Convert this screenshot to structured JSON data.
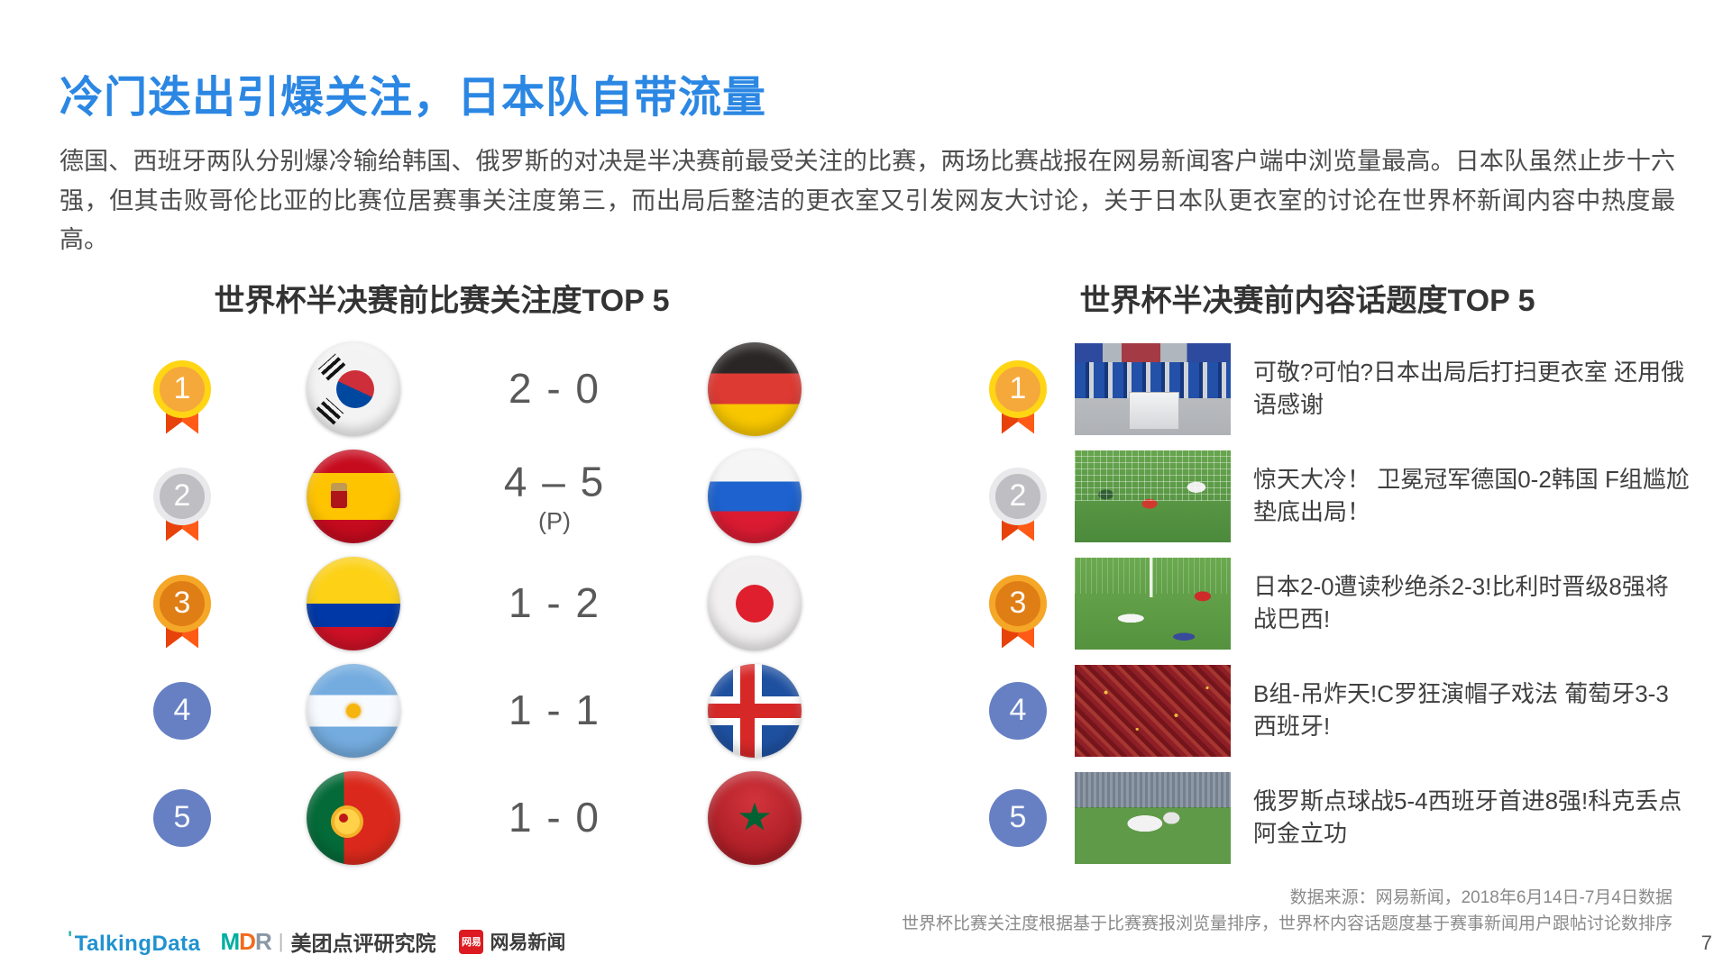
{
  "slide": {
    "title": "冷门迭出引爆关注，日本队自带流量",
    "paragraph": "德国、西班牙两队分别爆冷输给韩国、俄罗斯的对决是半决赛前最受关注的比赛，两场比赛战报在网易新闻客户端中浏览量最高。日本队虽然止步十六强，但其击败哥伦比亚的比赛位居赛事关注度第三，而出局后整洁的更衣室又引发网友大讨论，关于日本队更衣室的讨论在世界杯新闻内容中热度最高。",
    "page_number": "7"
  },
  "left_panel": {
    "header": "世界杯半决赛前比赛关注度TOP 5",
    "rows": [
      {
        "rank": "1",
        "home_flag": "south-korea",
        "score": "2 - 0",
        "score_note": "",
        "away_flag": "germany"
      },
      {
        "rank": "2",
        "home_flag": "spain",
        "score": "4 – 5",
        "score_note": "(P)",
        "away_flag": "russia"
      },
      {
        "rank": "3",
        "home_flag": "colombia",
        "score": "1 - 2",
        "score_note": "",
        "away_flag": "japan"
      },
      {
        "rank": "4",
        "home_flag": "argentina",
        "score": "1 - 1",
        "score_note": "",
        "away_flag": "iceland"
      },
      {
        "rank": "5",
        "home_flag": "portugal",
        "score": "1 - 0",
        "score_note": "",
        "away_flag": "morocco"
      }
    ]
  },
  "right_panel": {
    "header": "世界杯半决赛前内容话题度TOP 5",
    "rows": [
      {
        "rank": "1",
        "thumbnail": "japan-locker-room",
        "headline": "可敬?可怕?日本出局后打扫更衣室 还用俄语感谢"
      },
      {
        "rank": "2",
        "thumbnail": "germany-korea-goal",
        "headline": "惊天大冷！ 卫冕冠军德国0-2韩国 F组尴尬垫底出局！"
      },
      {
        "rank": "3",
        "thumbnail": "japan-belgium-match",
        "headline": "日本2-0遭读秒绝杀2-3!比利时晋级8强将战巴西!"
      },
      {
        "rank": "4",
        "thumbnail": "portugal-spain-crowd",
        "headline": "B组-吊炸天!C罗狂演帽子戏法 葡萄牙3-3西班牙!"
      },
      {
        "rank": "5",
        "thumbnail": "russia-celebration",
        "headline": "俄罗斯点球战5-4西班牙首进8强!科克丢点阿金立功"
      }
    ]
  },
  "footer": {
    "source_line1": "数据来源：网易新闻，2018年6月14日-7月4日数据",
    "source_line2": "世界杯比赛关注度根据基于比赛赛报浏览量排序，世界杯内容话题度基于赛事新闻用户跟帖讨论数排序",
    "logos": {
      "talkingdata": "TalkingData",
      "mdr_m": "M",
      "mdr_d": "D",
      "mdr_r": "R",
      "meituan": "美团点评研究院",
      "netease_badge": "网易",
      "netease": "网易新闻"
    }
  },
  "colors": {
    "title_blue": "#2B87E3",
    "medal_gold": "#FFD514",
    "medal_silver": "#E9E9EB",
    "medal_bronze": "#F5A728",
    "ribbon_red": "#F4490F",
    "rank_blue": "#6780C4"
  }
}
